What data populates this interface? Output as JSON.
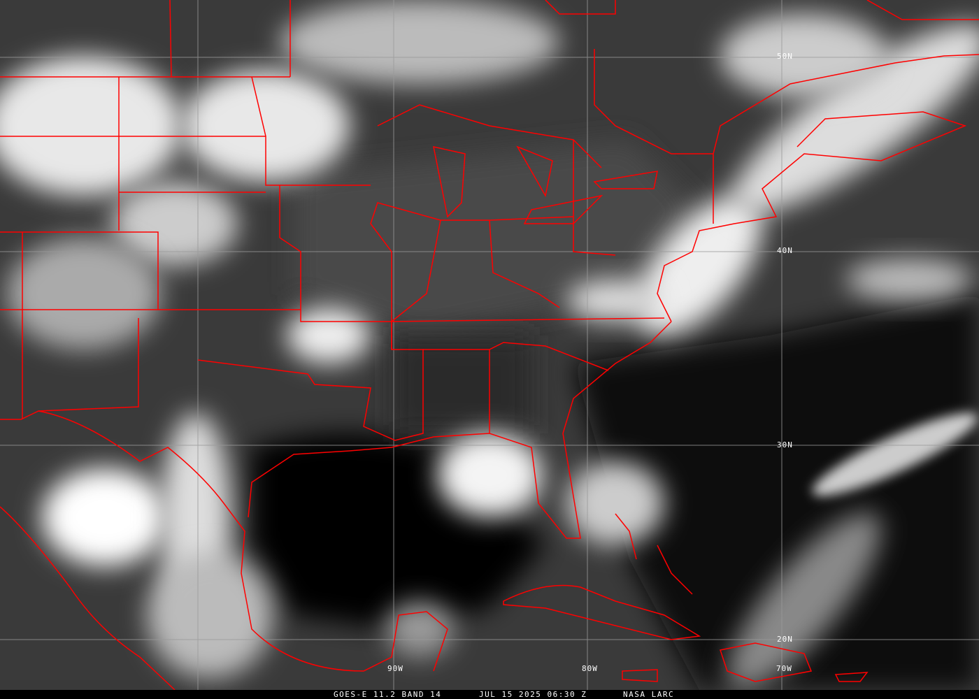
{
  "image": {
    "type": "satellite infrared image",
    "border_color": "#ff0000",
    "grid_color": "#9a9a9a"
  },
  "grid_labels": {
    "lat": [
      "50N",
      "40N",
      "30N",
      "20N"
    ],
    "lon": [
      "90W",
      "80W",
      "70W"
    ]
  },
  "caption": {
    "product": "GOES-E 11.2 BAND 14",
    "datetime": "JUL 15 2025 06:30 Z",
    "source": "NASA LARC"
  }
}
